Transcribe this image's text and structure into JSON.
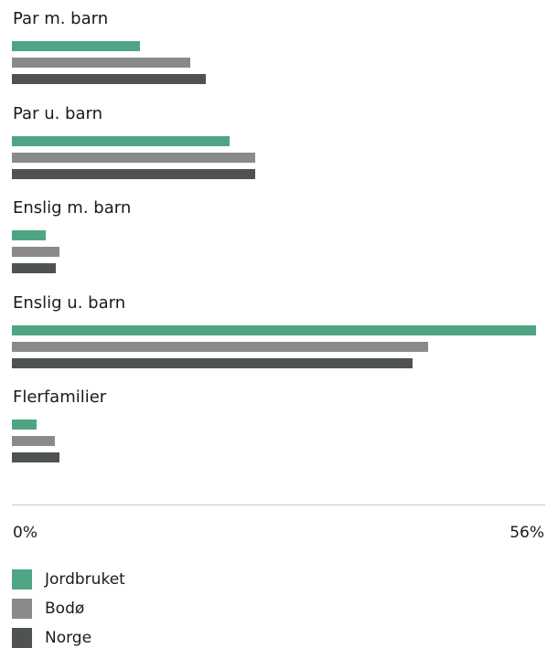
{
  "chart_data": {
    "type": "bar",
    "orientation": "horizontal",
    "categories": [
      "Par m. barn",
      "Par u. barn",
      "Enslig m. barn",
      "Enslig u. barn",
      "Flerfamilier"
    ],
    "series": [
      {
        "name": "Jordbruket",
        "color": "#4fa583",
        "values": [
          13.6,
          23.1,
          3.6,
          55.6,
          2.6
        ]
      },
      {
        "name": "Bodø",
        "color": "#8a8a8a",
        "values": [
          18.9,
          25.8,
          5.0,
          44.2,
          4.6
        ]
      },
      {
        "name": "Norge",
        "color": "#4f5253",
        "values": [
          20.6,
          25.8,
          4.7,
          42.5,
          5.0
        ]
      }
    ],
    "xlim": [
      0,
      56
    ],
    "tick_labels": [
      "0%",
      "56%"
    ],
    "grid": false,
    "legend_position": "bottom-left"
  }
}
